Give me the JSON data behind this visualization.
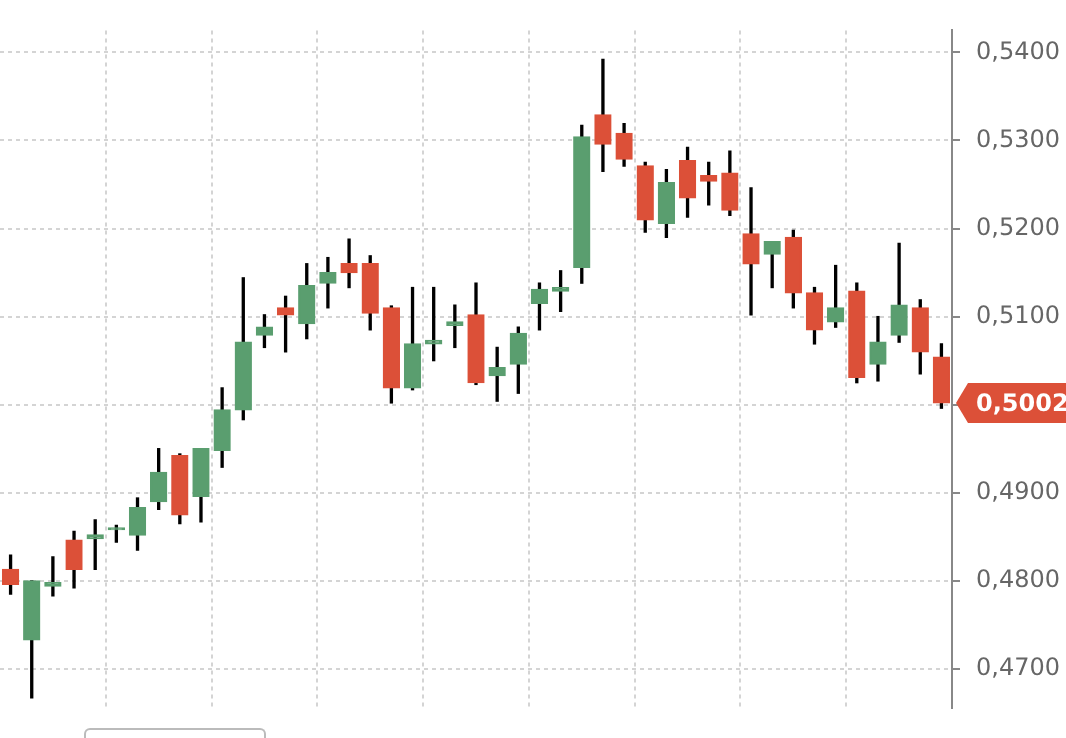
{
  "chart_data": {
    "type": "candlestick",
    "categories": [
      null,
      null,
      null,
      null,
      null,
      null,
      null,
      null,
      null,
      null,
      null,
      null,
      null,
      null,
      null,
      null,
      null,
      null,
      null,
      null,
      null,
      null,
      null,
      null,
      null,
      null,
      null,
      null,
      null,
      null,
      null,
      null,
      null,
      null,
      null,
      null,
      null,
      null,
      null,
      null,
      null,
      null,
      null,
      null,
      null
    ],
    "ohlc": [
      [
        0.4813,
        0.4829,
        0.4785,
        0.4796
      ],
      [
        0.4733,
        0.48,
        0.4667,
        0.48
      ],
      [
        0.4794,
        0.4827,
        0.4783,
        0.4798
      ],
      [
        0.4846,
        0.4856,
        0.4792,
        0.4813
      ],
      [
        0.4848,
        0.4869,
        0.4813,
        0.4852
      ],
      [
        0.4858,
        0.4863,
        0.4844,
        0.486
      ],
      [
        0.4852,
        0.4894,
        0.4835,
        0.4883
      ],
      [
        0.489,
        0.495,
        0.4881,
        0.4923
      ],
      [
        0.4942,
        0.4944,
        0.4865,
        0.4875
      ],
      [
        0.4896,
        0.495,
        0.4867,
        0.495
      ],
      [
        0.4948,
        0.5019,
        0.4929,
        0.4994
      ],
      [
        0.4994,
        0.5144,
        0.4983,
        0.5071
      ],
      [
        0.5079,
        0.5102,
        0.5065,
        0.5088
      ],
      [
        0.511,
        0.5123,
        0.506,
        0.5102
      ],
      [
        0.5092,
        0.516,
        0.5075,
        0.5135
      ],
      [
        0.5138,
        0.5167,
        0.511,
        0.515
      ],
      [
        0.516,
        0.5188,
        0.5133,
        0.515
      ],
      [
        0.516,
        0.5169,
        0.5085,
        0.5104
      ],
      [
        0.511,
        0.5112,
        0.5002,
        0.5019
      ],
      [
        0.5019,
        0.5133,
        0.5017,
        0.5069
      ],
      [
        0.5069,
        0.5133,
        0.505,
        0.5073
      ],
      [
        0.509,
        0.5113,
        0.5065,
        0.5094
      ],
      [
        0.5102,
        0.5138,
        0.5023,
        0.5025
      ],
      [
        0.5033,
        0.5065,
        0.5004,
        0.5042
      ],
      [
        0.5046,
        0.5088,
        0.5013,
        0.5081
      ],
      [
        0.5115,
        0.5138,
        0.5085,
        0.5131
      ],
      [
        0.5129,
        0.5152,
        0.5106,
        0.5133
      ],
      [
        0.5156,
        0.5317,
        0.5138,
        0.5304
      ],
      [
        0.5329,
        0.5392,
        0.5265,
        0.5296
      ],
      [
        0.5308,
        0.5319,
        0.5271,
        0.5279
      ],
      [
        0.5271,
        0.5275,
        0.5196,
        0.521
      ],
      [
        0.5206,
        0.5267,
        0.519,
        0.5252
      ],
      [
        0.5277,
        0.5292,
        0.5213,
        0.5235
      ],
      [
        0.526,
        0.5275,
        0.5227,
        0.5254
      ],
      [
        0.5263,
        0.5288,
        0.5215,
        0.5221
      ],
      [
        0.5194,
        0.5246,
        0.5102,
        0.516
      ],
      [
        0.5171,
        0.5185,
        0.5133,
        0.5185
      ],
      [
        0.519,
        0.5198,
        0.511,
        0.5127
      ],
      [
        0.5127,
        0.5133,
        0.5069,
        0.5085
      ],
      [
        0.5094,
        0.5158,
        0.5088,
        0.511
      ],
      [
        0.5129,
        0.5138,
        0.5025,
        0.5031
      ],
      [
        0.5046,
        0.51,
        0.5027,
        0.5071
      ],
      [
        0.5079,
        0.5183,
        0.5071,
        0.5113
      ],
      [
        0.511,
        0.5119,
        0.5035,
        0.506
      ],
      [
        0.5054,
        0.5069,
        0.4996,
        0.5002
      ]
    ],
    "colors": [
      "#dc5038",
      "#5a9e6f",
      "#5a9e6f",
      "#dc5038",
      "#5a9e6f",
      "#5a9e6f",
      "#5a9e6f",
      "#5a9e6f",
      "#dc5038",
      "#5a9e6f",
      "#5a9e6f",
      "#5a9e6f",
      "#5a9e6f",
      "#dc5038",
      "#5a9e6f",
      "#5a9e6f",
      "#dc5038",
      "#dc5038",
      "#dc5038",
      "#5a9e6f",
      "#5a9e6f",
      "#5a9e6f",
      "#dc5038",
      "#5a9e6f",
      "#5a9e6f",
      "#5a9e6f",
      "#5a9e6f",
      "#5a9e6f",
      "#dc5038",
      "#dc5038",
      "#dc5038",
      "#5a9e6f",
      "#dc5038",
      "#dc5038",
      "#dc5038",
      "#dc5038",
      "#5a9e6f",
      "#dc5038",
      "#dc5038",
      "#5a9e6f",
      "#dc5038",
      "#5a9e6f",
      "#5a9e6f",
      "#dc5038",
      "#dc5038"
    ],
    "ylim": [
      0.4656,
      0.5425
    ],
    "yticks": [
      {
        "value": 0.47,
        "label": "0,4700"
      },
      {
        "value": 0.48,
        "label": "0,4800"
      },
      {
        "value": 0.49,
        "label": "0,4900"
      },
      {
        "value": 0.5,
        "label": null
      },
      {
        "value": 0.51,
        "label": "0,5100"
      },
      {
        "value": 0.52,
        "label": "0,5200"
      },
      {
        "value": 0.53,
        "label": "0,5300"
      },
      {
        "value": 0.54,
        "label": "0,5400"
      }
    ],
    "annotations": [
      "0,5002"
    ],
    "grid": true,
    "tick_labels": "y",
    "legend": false
  }
}
